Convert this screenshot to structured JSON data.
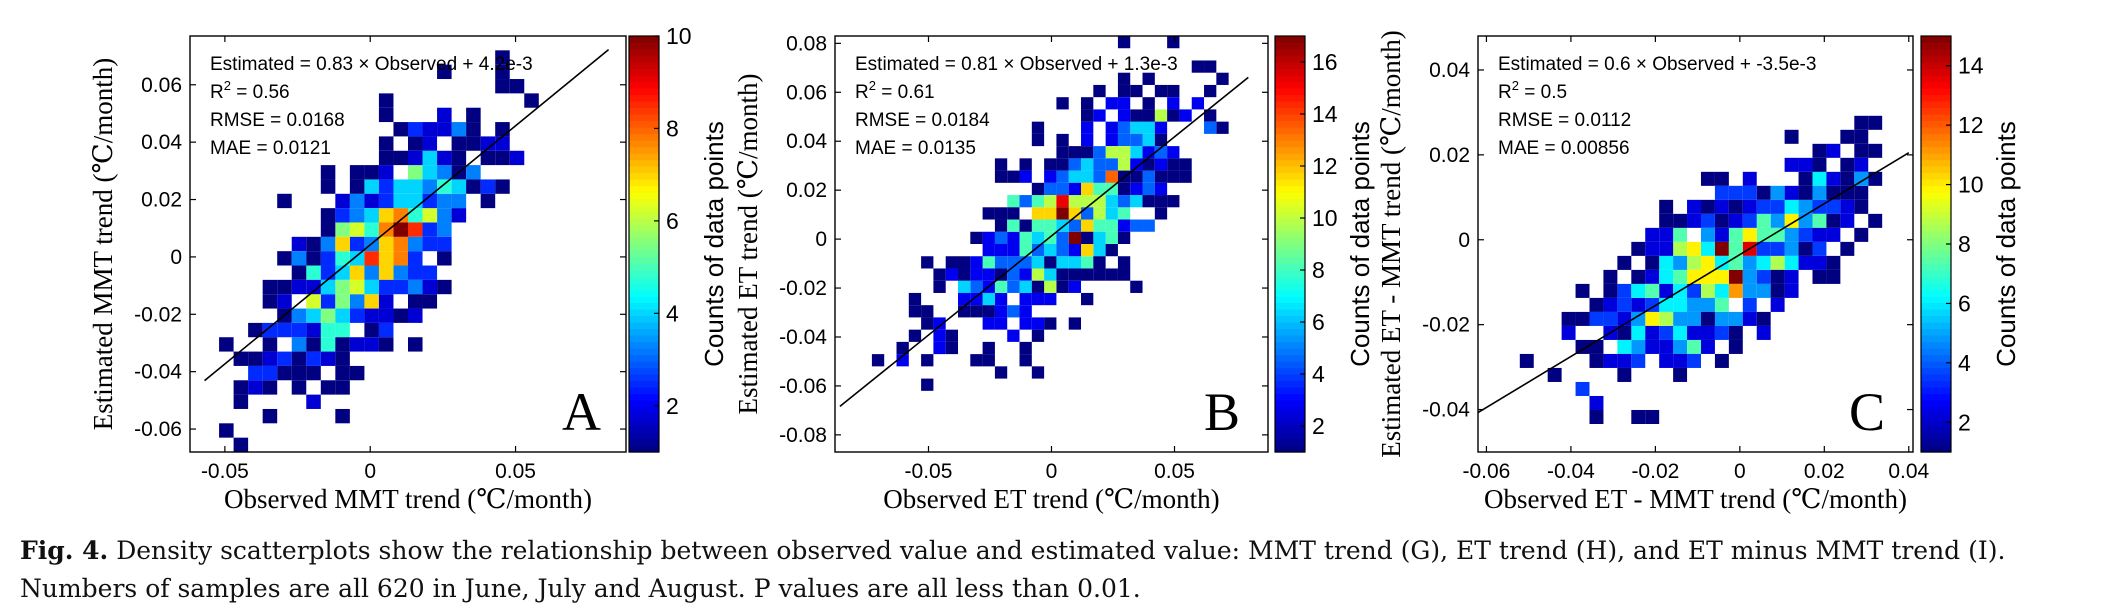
{
  "caption": {
    "label": "Fig. 4.",
    "text": "Density scatterplots show the relationship between observed value and estimated value: MMT trend (G), ET trend (H), and ET minus MMT trend (I). Numbers of samples are all 620 in June, July and August. P values are all less than 0.01."
  },
  "chart_data": [
    {
      "type": "heatmap",
      "panel_label": "A",
      "xlabel": "Observed MMT trend (℃/month)",
      "ylabel": "Estimated MMT trend (℃/month)",
      "xlim": [
        -0.062,
        0.088
      ],
      "ylim": [
        -0.068,
        0.077
      ],
      "xticks": [
        -0.05,
        0,
        0.05
      ],
      "xtick_labels": [
        "-0.05",
        "0",
        "0.05"
      ],
      "yticks": [
        -0.06,
        -0.04,
        -0.02,
        0,
        0.02,
        0.04,
        0.06
      ],
      "ytick_labels": [
        "-0.06",
        "-0.04",
        "-0.02",
        "0",
        "0.02",
        "0.04",
        "0.06"
      ],
      "annotations": [
        "Estimated = 0.83 × Observed + 4.2e-3",
        "R2 = 0.56",
        "RMSE = 0.0168",
        "MAE = 0.0121"
      ],
      "fit_line": {
        "slope": 0.83,
        "intercept": 0.0042,
        "x_range": [
          -0.057,
          0.082
        ]
      },
      "colorbar": {
        "label": "Counts of data points",
        "min": 1,
        "max": 10,
        "ticks": [
          2,
          4,
          6,
          8,
          10
        ],
        "colormap": "jet"
      },
      "density": {
        "center": [
          0.002,
          0.003
        ],
        "sx": 0.018,
        "sy": 0.022,
        "rho": 0.72,
        "peak": 10,
        "n": 620,
        "seed": 11,
        "bin": 0.005
      }
    },
    {
      "type": "heatmap",
      "panel_label": "B",
      "xlabel": "Observed ET trend (℃/month)",
      "ylabel": "Estimated ET trend (℃/month)",
      "xlim": [
        -0.088,
        0.088
      ],
      "ylim": [
        -0.087,
        0.083
      ],
      "xticks": [
        -0.05,
        0,
        0.05
      ],
      "xtick_labels": [
        "-0.05",
        "0",
        "0.05"
      ],
      "yticks": [
        -0.08,
        -0.06,
        -0.04,
        -0.02,
        0,
        0.02,
        0.04,
        0.06,
        0.08
      ],
      "ytick_labels": [
        "-0.08",
        "-0.06",
        "-0.04",
        "-0.02",
        "0",
        "0.02",
        "0.04",
        "0.06",
        "0.08"
      ],
      "annotations": [
        "Estimated = 0.81 × Observed + 1.3e-3",
        "R2 = 0.61",
        "RMSE = 0.0184",
        "MAE = 0.0135"
      ],
      "fit_line": {
        "slope": 0.81,
        "intercept": 0.0013,
        "x_range": [
          -0.086,
          0.08
        ]
      },
      "colorbar": {
        "label": "Counts of data points",
        "min": 1,
        "max": 17,
        "ticks": [
          2,
          4,
          6,
          8,
          10,
          12,
          14,
          16
        ],
        "colormap": "jet"
      },
      "density": {
        "center": [
          0.005,
          0.006
        ],
        "sx": 0.025,
        "sy": 0.025,
        "rho": 0.75,
        "peak": 17,
        "n": 620,
        "seed": 23,
        "bin": 0.005
      }
    },
    {
      "type": "heatmap",
      "panel_label": "C",
      "xlabel": "Observed ET - MMT trend (℃/month)",
      "ylabel": "Estimated ET - MMT trend (℃/month)",
      "xlim": [
        -0.062,
        0.041
      ],
      "ylim": [
        -0.05,
        0.048
      ],
      "xticks": [
        -0.06,
        -0.04,
        -0.02,
        0,
        0.02,
        0.04
      ],
      "xtick_labels": [
        "-0.06",
        "-0.04",
        "-0.02",
        "0",
        "0.02",
        "0.04"
      ],
      "yticks": [
        -0.04,
        -0.02,
        0,
        0.02,
        0.04
      ],
      "ytick_labels": [
        "-0.04",
        "-0.02",
        "0",
        "0.02",
        "0.04"
      ],
      "annotations": [
        "Estimated = 0.6 × Observed + -3.5e-3",
        "R2 = 0.5",
        "RMSE = 0.0112",
        "MAE = 0.00856"
      ],
      "fit_line": {
        "slope": 0.6,
        "intercept": -0.0035,
        "x_range": [
          -0.062,
          0.04
        ]
      },
      "colorbar": {
        "label": "Counts of data points",
        "min": 1,
        "max": 15,
        "ticks": [
          2,
          4,
          6,
          8,
          10,
          12,
          14
        ],
        "colormap": "jet"
      },
      "density": {
        "center": [
          -0.004,
          -0.006
        ],
        "sx": 0.015,
        "sy": 0.012,
        "rho": 0.7,
        "peak": 15,
        "n": 620,
        "seed": 37,
        "bin": 0.0033
      }
    }
  ]
}
